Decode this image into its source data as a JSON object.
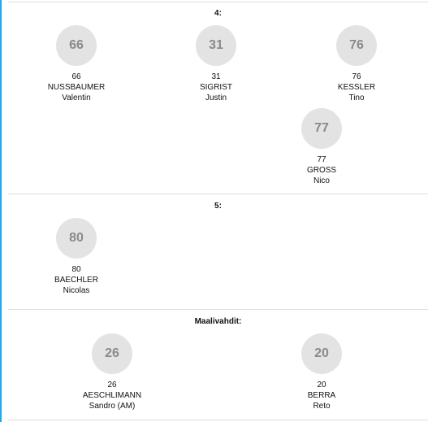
{
  "sections": [
    {
      "title": "4:",
      "players": [
        {
          "badge": "66",
          "number": "66",
          "last": "NUSSBAUMER",
          "first": "Valentin"
        },
        {
          "badge": "31",
          "number": "31",
          "last": "SIGRIST",
          "first": "Justin"
        },
        {
          "badge": "76",
          "number": "76",
          "last": "KESSLER",
          "first": "Tino"
        },
        {
          "badge": "77",
          "number": "77",
          "last": "GROSS",
          "first": "Nico"
        }
      ]
    },
    {
      "title": "5:",
      "players": [
        {
          "badge": "80",
          "number": "80",
          "last": "BAECHLER",
          "first": "Nicolas"
        }
      ]
    },
    {
      "title": "Maalivahdit:",
      "players": [
        {
          "badge": "26",
          "number": "26",
          "last": "AESCHLIMANN",
          "first": "Sandro (AM)"
        },
        {
          "badge": "20",
          "number": "20",
          "last": "BERRA",
          "first": "Reto"
        }
      ]
    }
  ]
}
